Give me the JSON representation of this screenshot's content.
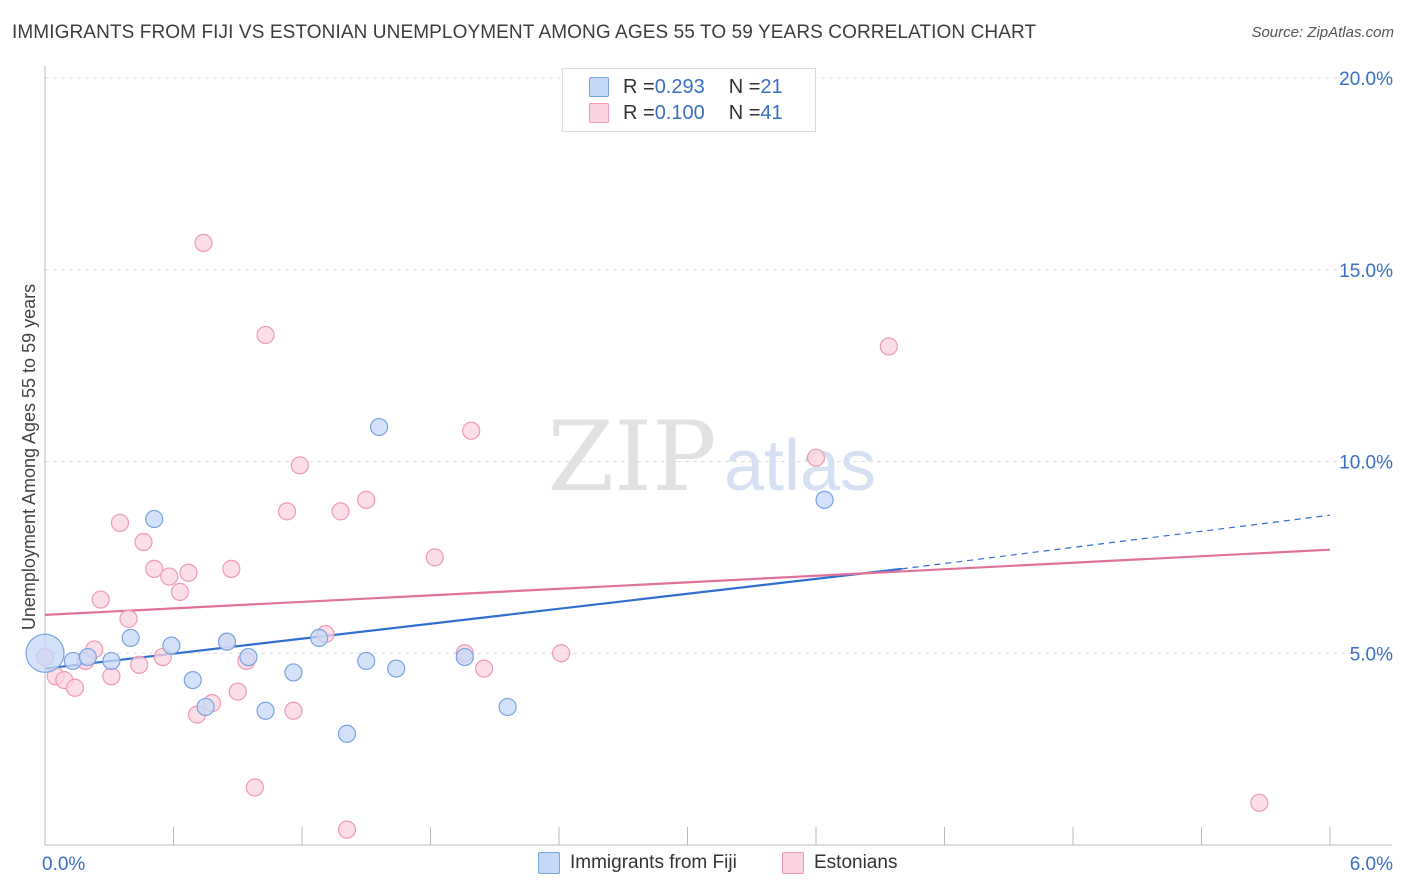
{
  "title": "IMMIGRANTS FROM FIJI VS ESTONIAN UNEMPLOYMENT AMONG AGES 55 TO 59 YEARS CORRELATION CHART",
  "source": "Source: ZipAtlas.com",
  "watermark": {
    "zip": "ZIP",
    "atlas": "atlas"
  },
  "legend": {
    "fiji": {
      "r_label": "R = ",
      "r_value": "0.293",
      "n_label": "N = ",
      "n_value": "21"
    },
    "estonians": {
      "r_label": "R = ",
      "r_value": "0.100",
      "n_label": "N = ",
      "n_value": "41"
    }
  },
  "colors": {
    "fiji_fill": "#c5d8f7",
    "fiji_stroke": "#7aa3e0",
    "fiji_line": "#2f6fcf",
    "est_fill": "#fbd3df",
    "est_stroke": "#ee9ab5",
    "est_line": "#e0729a",
    "tick_text": "#3a6fc4",
    "grid": "#dddddd"
  },
  "chart_data": {
    "type": "scatter",
    "title": "IMMIGRANTS FROM FIJI VS ESTONIAN UNEMPLOYMENT AMONG AGES 55 TO 59 YEARS CORRELATION CHART",
    "xlabel": "",
    "ylabel": "Unemployment Among Ages 55 to 59 years",
    "xlim": [
      0,
      6
    ],
    "ylim": [
      0,
      20
    ],
    "x_tick_labels": [
      "0.0%",
      "6.0%"
    ],
    "y_ticks": [
      5,
      10,
      15,
      20
    ],
    "y_tick_labels": [
      "5.0%",
      "10.0%",
      "15.0%",
      "20.0%"
    ],
    "series": [
      {
        "name": "Immigrants from Fiji",
        "points": [
          [
            0.0,
            5.0
          ],
          [
            0.13,
            4.8
          ],
          [
            0.2,
            4.9
          ],
          [
            0.31,
            4.8
          ],
          [
            0.4,
            5.4
          ],
          [
            0.51,
            8.5
          ],
          [
            0.59,
            5.2
          ],
          [
            0.69,
            4.3
          ],
          [
            0.75,
            3.6
          ],
          [
            0.85,
            5.3
          ],
          [
            0.95,
            4.9
          ],
          [
            1.03,
            3.5
          ],
          [
            1.16,
            4.5
          ],
          [
            1.28,
            5.4
          ],
          [
            1.41,
            2.9
          ],
          [
            1.5,
            4.8
          ],
          [
            1.56,
            10.9
          ],
          [
            1.64,
            4.6
          ],
          [
            1.96,
            4.9
          ],
          [
            2.16,
            3.6
          ],
          [
            3.64,
            9.0
          ]
        ],
        "trend": {
          "x0": 0.0,
          "y0": 4.6,
          "x1": 4.0,
          "y1": 7.2,
          "dash_x1": 6.0,
          "dash_y1": 8.6
        }
      },
      {
        "name": "Estonians",
        "points": [
          [
            0.0,
            4.9
          ],
          [
            0.05,
            4.4
          ],
          [
            0.09,
            4.3
          ],
          [
            0.14,
            4.1
          ],
          [
            0.19,
            4.8
          ],
          [
            0.23,
            5.1
          ],
          [
            0.26,
            6.4
          ],
          [
            0.31,
            4.4
          ],
          [
            0.35,
            8.4
          ],
          [
            0.39,
            5.9
          ],
          [
            0.44,
            4.7
          ],
          [
            0.46,
            7.9
          ],
          [
            0.51,
            7.2
          ],
          [
            0.55,
            4.9
          ],
          [
            0.58,
            7.0
          ],
          [
            0.63,
            6.6
          ],
          [
            0.67,
            7.1
          ],
          [
            0.71,
            3.4
          ],
          [
            0.74,
            15.7
          ],
          [
            0.78,
            3.7
          ],
          [
            0.85,
            5.3
          ],
          [
            0.87,
            7.2
          ],
          [
            0.9,
            4.0
          ],
          [
            0.94,
            4.8
          ],
          [
            0.98,
            1.5
          ],
          [
            1.03,
            13.3
          ],
          [
            1.13,
            8.7
          ],
          [
            1.16,
            3.5
          ],
          [
            1.19,
            9.9
          ],
          [
            1.31,
            5.5
          ],
          [
            1.38,
            8.7
          ],
          [
            1.41,
            0.4
          ],
          [
            1.5,
            9.0
          ],
          [
            1.82,
            7.5
          ],
          [
            1.96,
            5.0
          ],
          [
            1.99,
            10.8
          ],
          [
            2.05,
            4.6
          ],
          [
            2.41,
            5.0
          ],
          [
            3.6,
            10.1
          ],
          [
            3.94,
            13.0
          ],
          [
            5.67,
            1.1
          ]
        ],
        "trend": {
          "x0": 0.0,
          "y0": 6.0,
          "x1": 6.0,
          "y1": 7.7
        }
      }
    ]
  },
  "bottom_legend": [
    "Immigrants from Fiji",
    "Estonians"
  ]
}
